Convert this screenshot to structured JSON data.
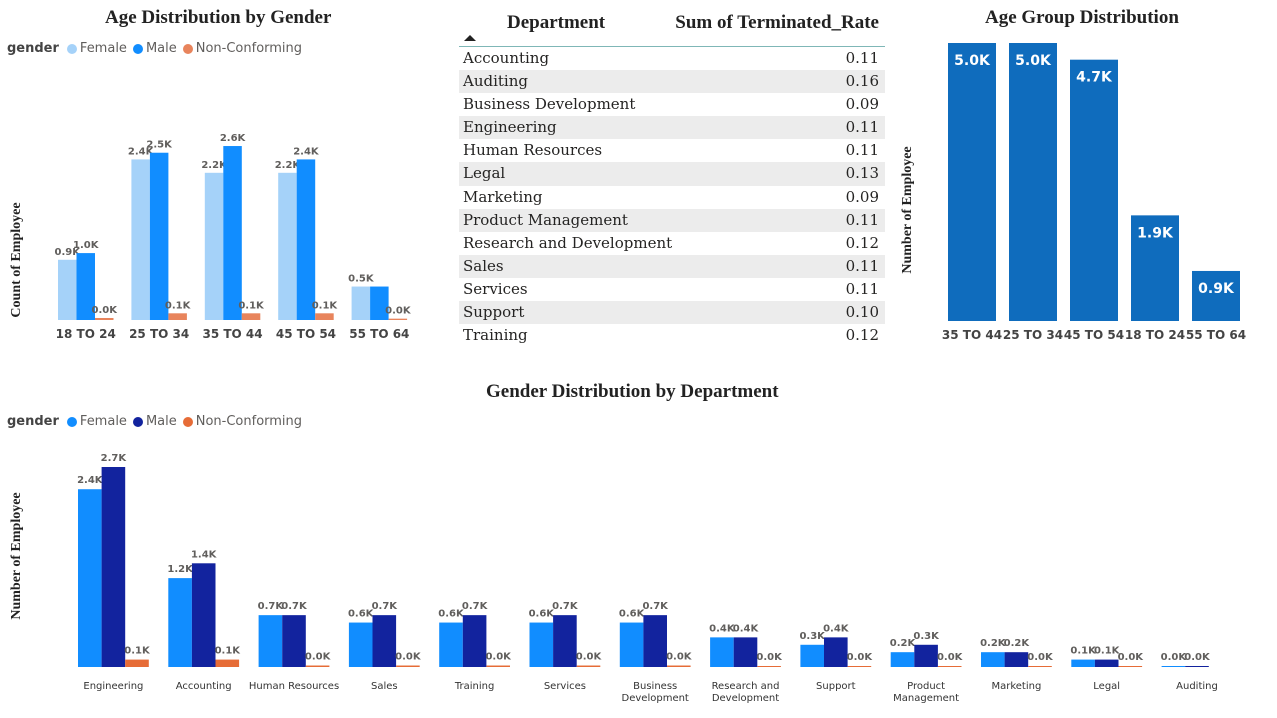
{
  "age_gender": {
    "title": "Age Distribution by Gender",
    "legend_title": "gender",
    "ylabel": "Count of Employee"
  },
  "table": {
    "col1": "Department",
    "col2": "Sum of Terminated_Rate",
    "rows": [
      {
        "dept": "Accounting",
        "rate": "0.11"
      },
      {
        "dept": "Auditing",
        "rate": "0.16"
      },
      {
        "dept": "Business Development",
        "rate": "0.09"
      },
      {
        "dept": "Engineering",
        "rate": "0.11"
      },
      {
        "dept": "Human Resources",
        "rate": "0.11"
      },
      {
        "dept": "Legal",
        "rate": "0.13"
      },
      {
        "dept": "Marketing",
        "rate": "0.09"
      },
      {
        "dept": "Product Management",
        "rate": "0.11"
      },
      {
        "dept": "Research and Development",
        "rate": "0.12"
      },
      {
        "dept": "Sales",
        "rate": "0.11"
      },
      {
        "dept": "Services",
        "rate": "0.11"
      },
      {
        "dept": "Support",
        "rate": "0.10"
      },
      {
        "dept": "Training",
        "rate": "0.12"
      }
    ]
  },
  "age_group": {
    "title": "Age Group Distribution",
    "ylabel": "Number of Employee"
  },
  "gender_dept": {
    "title": "Gender Distribution by Department",
    "legend_title": "gender",
    "ylabel": "Number of Employee"
  },
  "chart_data": [
    {
      "type": "bar",
      "title": "Age Distribution by Gender",
      "ylabel": "Count of Employee",
      "xlabel": "",
      "categories": [
        "18 TO 24",
        "25 TO 34",
        "35 TO 44",
        "45 TO 54",
        "55 TO 64"
      ],
      "series": [
        {
          "name": "Female",
          "color": "#a5d2f9",
          "values": [
            0.9,
            2.4,
            2.2,
            2.2,
            0.5
          ],
          "labels": [
            "0.9K",
            "2.4K",
            "2.2K",
            "2.2K",
            "0.5K"
          ]
        },
        {
          "name": "Male",
          "color": "#118dff",
          "values": [
            1.0,
            2.5,
            2.6,
            2.4,
            0.5
          ],
          "labels": [
            "1.0K",
            "2.5K",
            "2.6K",
            "2.4K",
            ""
          ]
        },
        {
          "name": "Non-Conforming",
          "color": "#e8845c",
          "values": [
            0.03,
            0.1,
            0.1,
            0.1,
            0.02
          ],
          "labels": [
            "0.0K",
            "0.1K",
            "0.1K",
            "0.1K",
            "0.0K"
          ]
        }
      ],
      "unit": "K",
      "ylim": [
        0,
        2.75
      ]
    },
    {
      "type": "bar",
      "title": "Age Group Distribution",
      "ylabel": "Number of Employee",
      "xlabel": "",
      "categories": [
        "35 TO 44",
        "25 TO 34",
        "45 TO 54",
        "18 TO 24",
        "55 TO 64"
      ],
      "values": [
        5.0,
        5.0,
        4.7,
        1.9,
        0.9
      ],
      "labels": [
        "5.0K",
        "5.0K",
        "4.7K",
        "1.9K",
        "0.9K"
      ],
      "color": "#0f6cbd",
      "unit": "K",
      "ylim": [
        0,
        5.0
      ]
    },
    {
      "type": "bar",
      "title": "Gender Distribution by Department",
      "ylabel": "Number of Employee",
      "xlabel": "",
      "categories": [
        "Engineering",
        "Accounting",
        "Human Resources",
        "Sales",
        "Training",
        "Services",
        "Business Development",
        "Research and Development",
        "Support",
        "Product Management",
        "Marketing",
        "Legal",
        "Auditing"
      ],
      "category_lines": [
        [
          "Engineering"
        ],
        [
          "Accounting"
        ],
        [
          "Human Resources"
        ],
        [
          "Sales"
        ],
        [
          "Training"
        ],
        [
          "Services"
        ],
        [
          "Business",
          "Development"
        ],
        [
          "Research and",
          "Development"
        ],
        [
          "Support"
        ],
        [
          "Product",
          "Management"
        ],
        [
          "Marketing"
        ],
        [
          "Legal"
        ],
        [
          "Auditing"
        ]
      ],
      "series": [
        {
          "name": "Female",
          "color": "#118dff",
          "values": [
            2.4,
            1.2,
            0.7,
            0.6,
            0.6,
            0.6,
            0.6,
            0.4,
            0.3,
            0.2,
            0.2,
            0.1,
            0.01
          ],
          "labels": [
            "2.4K",
            "1.2K",
            "0.7K",
            "0.6K",
            "0.6K",
            "0.6K",
            "0.6K",
            "0.4K",
            "0.3K",
            "0.2K",
            "0.2K",
            "0.1K",
            "0.0K"
          ]
        },
        {
          "name": "Male",
          "color": "#12239e",
          "values": [
            2.7,
            1.4,
            0.7,
            0.7,
            0.7,
            0.7,
            0.7,
            0.4,
            0.4,
            0.3,
            0.2,
            0.1,
            0.01
          ],
          "labels": [
            "2.7K",
            "1.4K",
            "0.7K",
            "0.7K",
            "0.7K",
            "0.7K",
            "0.7K",
            "0.4K",
            "0.4K",
            "0.3K",
            "0.2K",
            "0.1K",
            "0.0K"
          ]
        },
        {
          "name": "Non-Conforming",
          "color": "#e66c37",
          "values": [
            0.1,
            0.1,
            0.02,
            0.02,
            0.02,
            0.02,
            0.02,
            0.01,
            0.01,
            0.01,
            0.01,
            0.01,
            0
          ],
          "labels": [
            "0.1K",
            "0.1K",
            "0.0K",
            "0.0K",
            "0.0K",
            "0.0K",
            "0.0K",
            "0.0K",
            "0.0K",
            "0.0K",
            "0.0K",
            "0.0K",
            ""
          ]
        }
      ],
      "unit": "K",
      "ylim": [
        0,
        2.7
      ]
    }
  ]
}
